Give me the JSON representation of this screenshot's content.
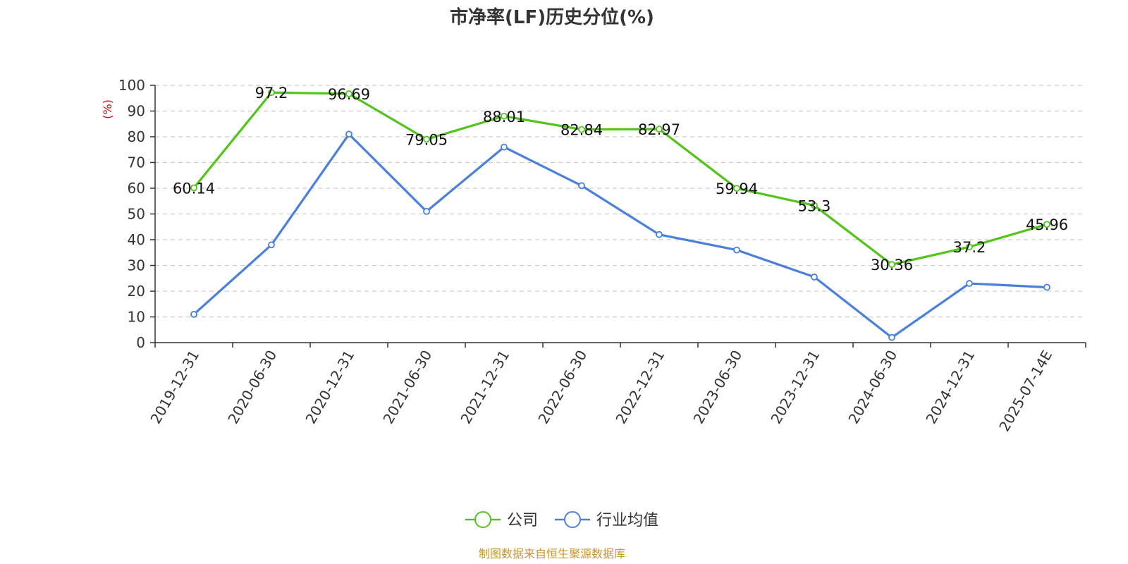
{
  "chart_data": {
    "type": "line",
    "title": "市净率(LF)历史分位(%)",
    "ylabel": "(%)",
    "ylim": [
      0,
      100
    ],
    "yticks": [
      0,
      10,
      20,
      30,
      40,
      50,
      60,
      70,
      80,
      90,
      100
    ],
    "grid": true,
    "categories": [
      "2019-12-31",
      "2020-06-30",
      "2020-12-31",
      "2021-06-30",
      "2021-12-31",
      "2022-06-30",
      "2022-12-31",
      "2023-06-30",
      "2023-12-31",
      "2024-06-30",
      "2024-12-31",
      "2025-07-14E"
    ],
    "series": [
      {
        "name": "公司",
        "color": "#52c41a",
        "values": [
          60.14,
          97.2,
          96.69,
          79.05,
          88.01,
          82.84,
          82.97,
          59.94,
          53.3,
          30.36,
          37.2,
          45.96
        ],
        "labels": [
          "60.14",
          "97.2",
          "96.69",
          "79.05",
          "88.01",
          "82.84",
          "82.97",
          "59.94",
          "53.3",
          "30.36",
          "37.2",
          "45.96"
        ]
      },
      {
        "name": "行业均值",
        "color": "#4a7fdc",
        "values": [
          11,
          38,
          81,
          51,
          76,
          61,
          42,
          36,
          25.5,
          2,
          23,
          21.5
        ]
      }
    ],
    "legend_position": "bottom-center",
    "source": "制图数据来自恒生聚源数据库",
    "source_color": "#c8962a",
    "unit_color": "#e00000",
    "axis_color": "#333333",
    "grid_color": "#cccccc"
  }
}
